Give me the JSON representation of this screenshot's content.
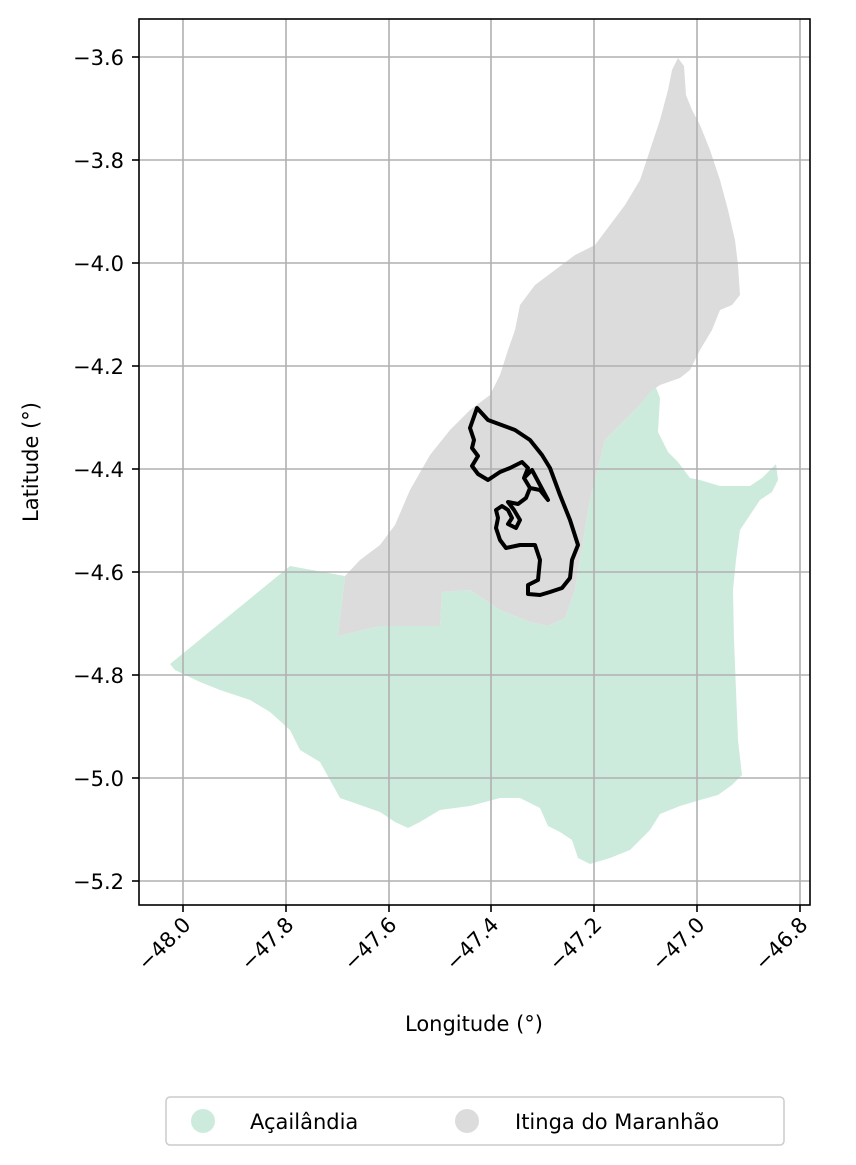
{
  "map": {
    "xlabel": "Longitude (°)",
    "ylabel": "Latitude (°)",
    "x_ticks": [
      "−48.0",
      "−47.8",
      "−47.6",
      "−47.4",
      "−47.2",
      "−47.0",
      "−46.8"
    ],
    "y_ticks": [
      "−3.6",
      "−3.8",
      "−4.0",
      "−4.2",
      "−4.4",
      "−4.6",
      "−4.8",
      "−5.0",
      "−5.2"
    ],
    "grid": true,
    "legend_placement": "bottom-center",
    "legend": [
      {
        "label": "Açailândia",
        "color": "#cdebdc"
      },
      {
        "label": "Itinga do Maranhão",
        "color": "#dcdcdc"
      }
    ],
    "outline_color": "#000000"
  }
}
